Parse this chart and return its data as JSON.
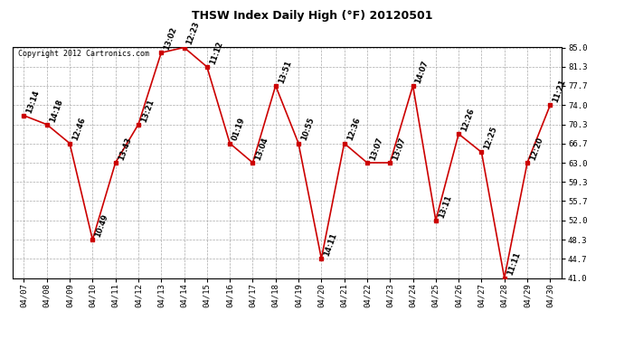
{
  "title": "THSW Index Daily High (°F) 20120501",
  "copyright": "Copyright 2012 Cartronics.com",
  "dates": [
    "04/07",
    "04/08",
    "04/09",
    "04/10",
    "04/11",
    "04/12",
    "04/13",
    "04/14",
    "04/15",
    "04/16",
    "04/17",
    "04/18",
    "04/19",
    "04/20",
    "04/21",
    "04/22",
    "04/23",
    "04/24",
    "04/25",
    "04/26",
    "04/27",
    "04/28",
    "04/29",
    "04/30"
  ],
  "values": [
    72.0,
    70.3,
    66.7,
    48.3,
    63.0,
    70.3,
    84.0,
    85.0,
    81.3,
    66.7,
    63.0,
    77.7,
    66.7,
    44.7,
    66.7,
    63.0,
    63.0,
    77.7,
    52.0,
    68.5,
    65.0,
    41.0,
    63.0,
    74.0
  ],
  "times": [
    "13:14",
    "14:18",
    "12:46",
    "10:49",
    "13:43",
    "13:21",
    "13:02",
    "12:23",
    "11:12",
    "01:19",
    "13:04",
    "13:51",
    "10:55",
    "14:11",
    "12:36",
    "13:07",
    "13:07",
    "14:07",
    "13:11",
    "12:26",
    "12:25",
    "11:11",
    "12:20",
    "11:21"
  ],
  "ylim": [
    41.0,
    85.0
  ],
  "yticks": [
    41.0,
    44.7,
    48.3,
    52.0,
    55.7,
    59.3,
    63.0,
    66.7,
    70.3,
    74.0,
    77.7,
    81.3,
    85.0
  ],
  "line_color": "#cc0000",
  "marker_color": "#cc0000",
  "bg_color": "#ffffff",
  "grid_color": "#aaaaaa",
  "title_fontsize": 9,
  "label_fontsize": 6.0,
  "tick_fontsize": 6.5,
  "copyright_fontsize": 6
}
